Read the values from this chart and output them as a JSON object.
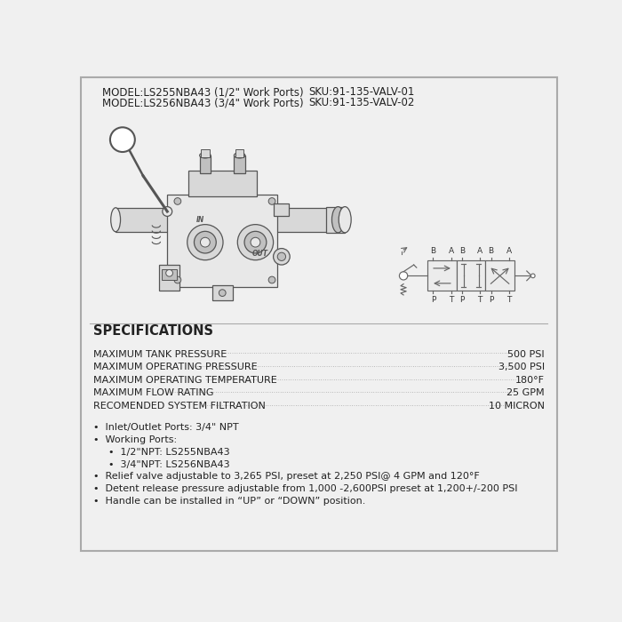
{
  "bg_color": "#f0f0f0",
  "border_color": "#aaaaaa",
  "title_line1": "MODEL:LS255NBA43 (1/2\" Work Ports)",
  "title_line2": "MODEL:LS256NBA43 (3/4\" Work Ports)",
  "sku_line1": "SKU:91-135-VALV-01",
  "sku_line2": "SKU:91-135-VALV-02",
  "specs_title": "SPECIFICATIONS",
  "specs": [
    [
      "MAXIMUM TANK PRESSURE",
      "500 PSI"
    ],
    [
      "MAXIMUM OPERATING PRESSURE",
      "3,500 PSI"
    ],
    [
      "MAXIMUM OPERATING TEMPERATURE",
      "180°F"
    ],
    [
      "MAXIMUM FLOW RATING",
      "25 GPM"
    ],
    [
      "RECOMENDED SYSTEM FILTRATION",
      "10 MICRON"
    ]
  ],
  "bullets": [
    {
      "text": "Inlet/Outlet Ports: 3/4\" NPT",
      "level": 0
    },
    {
      "text": "Working Ports:",
      "level": 0
    },
    {
      "text": "1/2\"NPT: LS255NBA43",
      "level": 1
    },
    {
      "text": "3/4\"NPT: LS256NBA43",
      "level": 1
    },
    {
      "text": "Relief valve adjustable to 3,265 PSI, preset at 2,250 PSI@ 4 GPM and 120°F",
      "level": 0
    },
    {
      "text": "Detent release pressure adjustable from 1,000 -2,600PSI preset at 1,200+/-200 PSI",
      "level": 0
    },
    {
      "text": "Handle can be installed in “UP” or “DOWN” position.",
      "level": 0
    }
  ],
  "text_color": "#222222",
  "line_color": "#555555",
  "dot_color": "#888888"
}
